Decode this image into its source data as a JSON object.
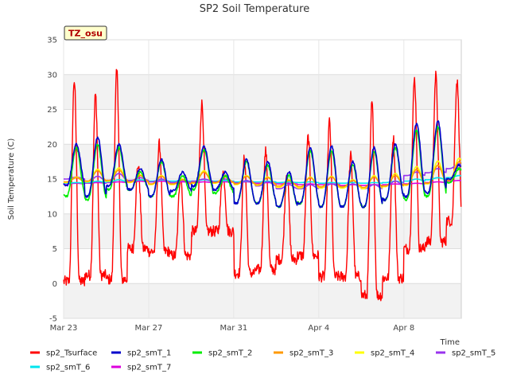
{
  "chart_data": {
    "type": "line",
    "title": "SP2 Soil Temperature",
    "xlabel": "Time",
    "ylabel": "Soil Temperature (C)",
    "ylim": [
      -5,
      35
    ],
    "xlim": [
      0,
      18.7
    ],
    "yticks": [
      -5,
      0,
      5,
      10,
      15,
      20,
      25,
      30,
      35
    ],
    "xticks": [
      {
        "label": "Mar 23",
        "x": 0
      },
      {
        "label": "Mar 27",
        "x": 4
      },
      {
        "label": "Mar 31",
        "x": 8
      },
      {
        "label": "Apr 4",
        "x": 12
      },
      {
        "label": "Apr 8",
        "x": 16
      }
    ],
    "x_units": "days since Mar 23",
    "background_bands": "alternating grey every 5 C",
    "badge": "TZ_osu",
    "legend_placement": "bottom",
    "series": [
      {
        "name": "sp2_Tsurface",
        "color": "#ff0000",
        "daily_min": [
          0.3,
          1.2,
          0.6,
          5.0,
          4.6,
          4.0,
          7.5,
          7.5,
          1.5,
          2.0,
          3.5,
          4.0,
          1.0,
          1.0,
          -1.7,
          0.8,
          5.0,
          6.0,
          9.0
        ],
        "daily_max": [
          29.2,
          27.0,
          30.5,
          17.0,
          20.0,
          15.5,
          25.8,
          16.0,
          18.0,
          19.0,
          16.0,
          21.0,
          23.2,
          18.3,
          25.8,
          21.0,
          29.3,
          29.8,
          29.0
        ]
      },
      {
        "name": "sp2_smT_1",
        "color": "#0000cc",
        "daily_min": [
          14.0,
          12.5,
          14.0,
          13.5,
          12.5,
          13.3,
          14.0,
          13.5,
          11.5,
          11.5,
          11.0,
          11.5,
          11.0,
          11.0,
          11.0,
          12.0,
          12.5,
          13.0,
          15.0
        ],
        "daily_max": [
          20.0,
          21.0,
          20.0,
          16.5,
          17.8,
          16.0,
          19.7,
          16.0,
          17.8,
          17.5,
          16.0,
          19.5,
          19.7,
          17.5,
          19.5,
          20.0,
          23.0,
          23.3,
          17.0
        ]
      },
      {
        "name": "sp2_smT_2",
        "color": "#00ee00",
        "daily_min": [
          12.5,
          12.0,
          13.5,
          13.5,
          12.5,
          12.5,
          13.5,
          13.0,
          11.5,
          11.5,
          11.0,
          11.5,
          11.0,
          11.0,
          11.0,
          12.0,
          12.0,
          12.5,
          14.5
        ],
        "daily_max": [
          19.5,
          20.0,
          19.5,
          16.0,
          17.5,
          15.5,
          19.2,
          15.5,
          17.5,
          17.0,
          15.5,
          19.0,
          19.0,
          17.0,
          19.0,
          19.5,
          22.0,
          22.5,
          16.5
        ]
      },
      {
        "name": "sp2_smT_3",
        "color": "#ff9900",
        "daily_min": [
          14.6,
          14.7,
          14.8,
          14.6,
          14.3,
          14.3,
          14.5,
          14.5,
          14.3,
          14.2,
          14.0,
          13.9,
          13.9,
          13.9,
          13.8,
          14.0,
          14.2,
          14.4,
          14.8
        ],
        "daily_max": [
          15.2,
          16.2,
          16.3,
          15.5,
          15.4,
          14.9,
          16.0,
          15.3,
          15.4,
          15.2,
          14.8,
          15.2,
          15.3,
          14.8,
          15.3,
          15.5,
          16.4,
          17.0,
          17.5
        ]
      },
      {
        "name": "sp2_smT_4",
        "color": "#ffff00",
        "daily_min": [
          14.5,
          14.6,
          14.7,
          14.5,
          14.2,
          14.2,
          14.4,
          14.4,
          14.2,
          14.1,
          13.8,
          13.7,
          13.7,
          13.7,
          13.6,
          13.9,
          14.1,
          14.3,
          14.8
        ],
        "daily_max": [
          15.3,
          16.4,
          16.6,
          15.6,
          15.5,
          15.0,
          16.2,
          15.4,
          15.5,
          15.3,
          14.9,
          15.3,
          15.4,
          14.9,
          15.5,
          15.8,
          16.8,
          17.6,
          18.0
        ]
      },
      {
        "name": "sp2_smT_5",
        "color": "#9933ee",
        "daily_min": [
          15.0,
          14.7,
          14.8,
          14.8,
          14.6,
          14.5,
          14.7,
          14.6,
          14.3,
          14.0,
          13.6,
          13.6,
          13.8,
          13.8,
          13.6,
          14.0,
          15.5,
          15.9,
          16.5
        ],
        "daily_max": [
          15.3,
          15.4,
          15.8,
          15.2,
          15.0,
          14.8,
          15.0,
          15.0,
          14.8,
          14.6,
          14.2,
          14.2,
          14.3,
          14.3,
          14.2,
          14.7,
          16.0,
          16.5,
          17.2
        ]
      },
      {
        "name": "sp2_smT_6",
        "color": "#00e5ee",
        "daily_min": [
          14.4,
          14.5,
          14.6,
          14.7,
          14.7,
          14.7,
          14.7,
          14.7,
          14.6,
          14.6,
          14.5,
          14.5,
          14.4,
          14.4,
          14.4,
          14.5,
          14.7,
          14.9,
          15.2
        ],
        "daily_max": [
          14.5,
          14.7,
          14.9,
          14.9,
          14.9,
          14.8,
          14.9,
          14.8,
          14.7,
          14.7,
          14.6,
          14.6,
          14.5,
          14.5,
          14.5,
          14.7,
          15.0,
          15.2,
          15.5
        ]
      },
      {
        "name": "sp2_smT_7",
        "color": "#dd00dd",
        "daily_min": [
          14.3,
          14.4,
          14.5,
          14.6,
          14.6,
          14.5,
          14.5,
          14.5,
          14.5,
          14.4,
          14.3,
          14.2,
          14.2,
          14.1,
          14.1,
          14.2,
          14.3,
          14.5,
          14.7
        ],
        "daily_max": [
          14.4,
          14.5,
          14.6,
          14.7,
          14.7,
          14.6,
          14.6,
          14.6,
          14.6,
          14.5,
          14.4,
          14.3,
          14.3,
          14.2,
          14.2,
          14.3,
          14.4,
          14.6,
          14.8
        ]
      }
    ]
  }
}
